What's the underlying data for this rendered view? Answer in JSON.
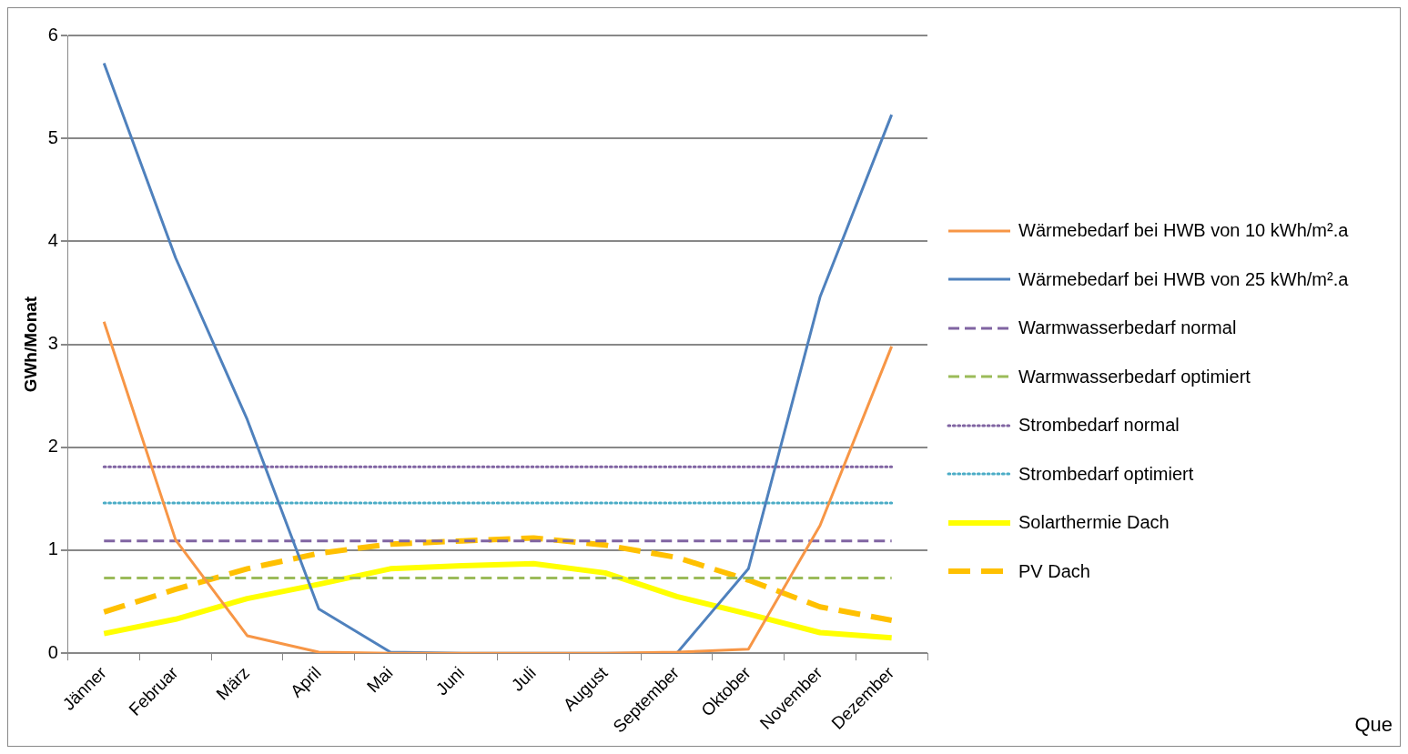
{
  "chart_data": {
    "type": "line",
    "ylabel": "GWh/Monat",
    "categories": [
      "Jänner",
      "Februar",
      "März",
      "April",
      "Mai",
      "Juni",
      "Juli",
      "August",
      "September",
      "Oktober",
      "November",
      "Dezember"
    ],
    "ylim": [
      0,
      6
    ],
    "yticks": [
      0,
      1,
      2,
      3,
      4,
      5,
      6
    ],
    "grid": "y",
    "legend": "right",
    "marker": "none",
    "annotations": [
      "Que"
    ],
    "series": [
      {
        "name": "Wärmebedarf bei HWB von 10 kWh/m².a",
        "color": "#f79646",
        "line_style": "solid",
        "values": [
          3.22,
          1.1,
          0.17,
          0.01,
          0,
          0,
          0,
          0,
          0.01,
          0.04,
          1.24,
          2.98
        ]
      },
      {
        "name": "Wärmebedarf bei HWB von 25 kWh/m².a",
        "color": "#4f81bd",
        "line_style": "solid",
        "values": [
          5.73,
          3.84,
          2.27,
          0.43,
          0.01,
          0,
          0,
          0,
          0,
          0.82,
          3.46,
          5.23
        ]
      },
      {
        "name": "Warmwasserbedarf normal",
        "color": "#8064a2",
        "line_style": "dashed",
        "values": [
          1.09,
          1.09,
          1.09,
          1.09,
          1.09,
          1.09,
          1.09,
          1.09,
          1.09,
          1.09,
          1.09,
          1.09
        ]
      },
      {
        "name": "Warmwasserbedarf optimiert",
        "color": "#9bbb59",
        "line_style": "dashed",
        "values": [
          0.73,
          0.73,
          0.73,
          0.73,
          0.73,
          0.73,
          0.73,
          0.73,
          0.73,
          0.73,
          0.73,
          0.73
        ]
      },
      {
        "name": "Strombedarf normal",
        "color": "#8064a2",
        "line_style": "dotted",
        "values": [
          1.81,
          1.81,
          1.81,
          1.81,
          1.81,
          1.81,
          1.81,
          1.81,
          1.81,
          1.81,
          1.81,
          1.81
        ]
      },
      {
        "name": "Strombedarf optimiert",
        "color": "#4bacc6",
        "line_style": "dotted",
        "values": [
          1.46,
          1.46,
          1.46,
          1.46,
          1.46,
          1.46,
          1.46,
          1.46,
          1.46,
          1.46,
          1.46,
          1.46
        ]
      },
      {
        "name": "Solarthermie Dach",
        "color": "#ffff00",
        "line_style": "solid",
        "values": [
          0.19,
          0.33,
          0.53,
          0.67,
          0.82,
          0.85,
          0.87,
          0.78,
          0.55,
          0.38,
          0.2,
          0.15
        ]
      },
      {
        "name": "PV Dach",
        "color": "#ffc000",
        "line_style": "dashed",
        "values": [
          0.4,
          0.62,
          0.82,
          0.97,
          1.06,
          1.09,
          1.12,
          1.05,
          0.93,
          0.71,
          0.45,
          0.32
        ]
      }
    ]
  }
}
